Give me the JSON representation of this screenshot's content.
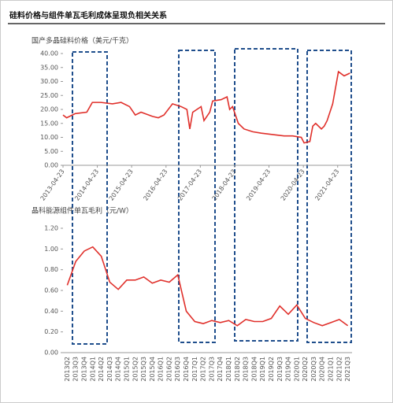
{
  "title": "硅料价格与组件单瓦毛利成体呈现负相关关系",
  "chart_data": [
    {
      "type": "line",
      "title": "国产多晶硅料价格（美元/千克）",
      "x": [
        "2013-04-23",
        "2013-06",
        "2013-09",
        "2014-01",
        "2014-03",
        "2014-06",
        "2014-10",
        "2015-01",
        "2015-04",
        "2015-06",
        "2015-08",
        "2015-12",
        "2016-02",
        "2016-04",
        "2016-07",
        "2016-10",
        "2016-12",
        "2017-01",
        "2017-02",
        "2017-05",
        "2017-06",
        "2017-08",
        "2017-09",
        "2017-12",
        "2018-02",
        "2018-03",
        "2018-04",
        "2018-06",
        "2018-08",
        "2018-11",
        "2019-02",
        "2019-06",
        "2019-10",
        "2020-01",
        "2020-04",
        "2020-05",
        "2020-07",
        "2020-08",
        "2020-09",
        "2020-11",
        "2020-12",
        "2021-01",
        "2021-03",
        "2021-05",
        "2021-07",
        "2021-09"
      ],
      "series": [
        {
          "color": "#e0302b",
          "values": [
            18,
            17,
            18.5,
            19,
            22.5,
            22.5,
            22,
            22.5,
            21,
            18,
            19,
            17.5,
            17,
            18,
            22,
            21,
            20,
            13,
            19,
            21,
            16,
            19,
            23,
            23.5,
            24.5,
            20,
            21,
            15,
            13,
            12,
            11.5,
            11,
            10.5,
            10.5,
            10,
            8,
            8.5,
            14,
            15,
            13,
            14,
            16,
            22,
            33.5,
            32,
            33
          ]
        }
      ],
      "xlim": [
        "2013-04-23",
        "2021-09-23"
      ],
      "xticks": [
        "2013-04-23",
        "2014-04-23",
        "2015-04-23",
        "2016-04-23",
        "2017-04-23",
        "2018-04-23",
        "2019-04-23",
        "2020-04-23",
        "2021-04-23"
      ],
      "ylim": [
        0,
        40
      ],
      "yticks": [
        {
          "value": 0,
          "label": "0.00"
        },
        {
          "value": 5,
          "label": "5.00"
        },
        {
          "value": 10,
          "label": "10.00"
        },
        {
          "value": 15,
          "label": "15.00"
        },
        {
          "value": 20,
          "label": "20.00"
        },
        {
          "value": 25,
          "label": "25.00"
        },
        {
          "value": 30,
          "label": "30.00"
        },
        {
          "value": 35,
          "label": "35.00"
        },
        {
          "value": 40,
          "label": "40.00"
        }
      ]
    },
    {
      "type": "line",
      "title": "晶科能源组件单瓦毛利（元/W）",
      "categories": [
        "2013Q2",
        "2013Q3",
        "2013Q4",
        "2014Q1",
        "2014Q2",
        "2014Q3",
        "2014Q4",
        "2015Q1",
        "2015Q2",
        "2015Q3",
        "2015Q4",
        "2016Q1",
        "2016Q2",
        "2016Q3",
        "2016Q4",
        "2017Q1",
        "2017Q2",
        "2017Q3",
        "2017Q4",
        "2018Q1",
        "2018Q2",
        "2018Q3",
        "2018Q4",
        "2019Q1",
        "2019Q2",
        "2019Q3",
        "2019Q4",
        "2020Q1",
        "2020Q2",
        "2020Q3",
        "2020Q4",
        "2021Q1",
        "2021Q2",
        "2021Q3"
      ],
      "series": [
        {
          "color": "#e0302b",
          "values": [
            0.65,
            0.88,
            0.98,
            1.02,
            0.93,
            0.68,
            0.61,
            0.7,
            0.7,
            0.73,
            0.67,
            0.7,
            0.68,
            0.75,
            0.4,
            0.3,
            0.28,
            0.31,
            0.29,
            0.31,
            0.26,
            0.32,
            0.3,
            0.3,
            0.33,
            0.45,
            0.37,
            0.46,
            0.33,
            0.29,
            0.26,
            0.29,
            0.32,
            0.26
          ]
        }
      ],
      "ylim": [
        0,
        1.2
      ],
      "yticks": [
        {
          "value": 0,
          "label": "0.00"
        },
        {
          "value": 0.2,
          "label": "0.20"
        },
        {
          "value": 0.4,
          "label": "0.40"
        },
        {
          "value": 0.6,
          "label": "0.60"
        },
        {
          "value": 0.8,
          "label": "0.80"
        },
        {
          "value": 1,
          "label": "1.00"
        },
        {
          "value": 1.2,
          "label": "1.20"
        }
      ]
    }
  ]
}
